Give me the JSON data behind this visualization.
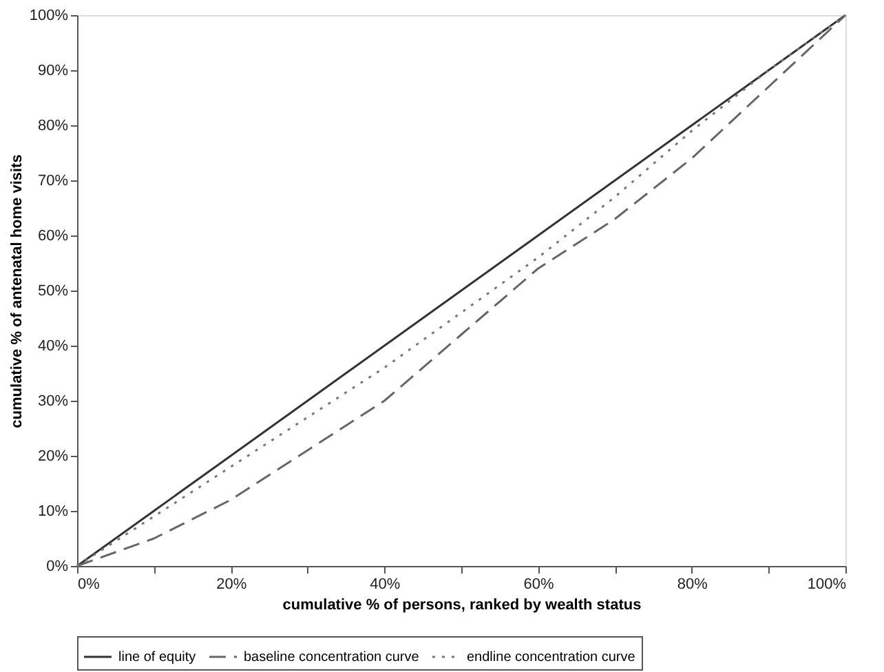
{
  "chart_data": {
    "type": "line",
    "xlabel": "cumulative %  of persons, ranked by wealth status",
    "ylabel": "cumulative %  of antenatal home visits",
    "x": [
      0,
      10,
      20,
      30,
      40,
      50,
      60,
      70,
      80,
      90,
      100
    ],
    "series": [
      {
        "name": "line of equity",
        "color": "#333333",
        "line_style": "solid",
        "values": [
          0,
          10,
          20,
          30,
          40,
          50,
          60,
          70,
          80,
          90,
          100
        ]
      },
      {
        "name": "baseline concentration curve",
        "color": "#666666",
        "line_style": "dashed",
        "values": [
          0,
          5,
          12,
          21,
          30,
          42,
          54,
          63,
          74,
          87,
          100
        ]
      },
      {
        "name": "endline concentration curve",
        "color": "#777777",
        "line_style": "dotted",
        "values": [
          0,
          9,
          18,
          27,
          36,
          46,
          56,
          67,
          79,
          90,
          100
        ]
      }
    ],
    "xlim": [
      0,
      100
    ],
    "ylim": [
      0,
      100
    ],
    "xticks": [
      {
        "value": 0,
        "label": "0%"
      },
      {
        "value": 10,
        "label": null
      },
      {
        "value": 20,
        "label": "20%"
      },
      {
        "value": 30,
        "label": null
      },
      {
        "value": 40,
        "label": "40%"
      },
      {
        "value": 50,
        "label": null
      },
      {
        "value": 60,
        "label": "60%"
      },
      {
        "value": 70,
        "label": null
      },
      {
        "value": 80,
        "label": "80%"
      },
      {
        "value": 90,
        "label": null
      },
      {
        "value": 100,
        "label": "100%"
      }
    ],
    "yticks": [
      {
        "value": 0,
        "label": "0%"
      },
      {
        "value": 10,
        "label": "10%"
      },
      {
        "value": 20,
        "label": "20%"
      },
      {
        "value": 30,
        "label": "30%"
      },
      {
        "value": 40,
        "label": "40%"
      },
      {
        "value": 50,
        "label": "50%"
      },
      {
        "value": 60,
        "label": "60%"
      },
      {
        "value": 70,
        "label": "70%"
      },
      {
        "value": 80,
        "label": "80%"
      },
      {
        "value": 90,
        "label": "90%"
      },
      {
        "value": 100,
        "label": "100%"
      }
    ],
    "grid": false,
    "legend": "bottom",
    "marker": "none"
  }
}
